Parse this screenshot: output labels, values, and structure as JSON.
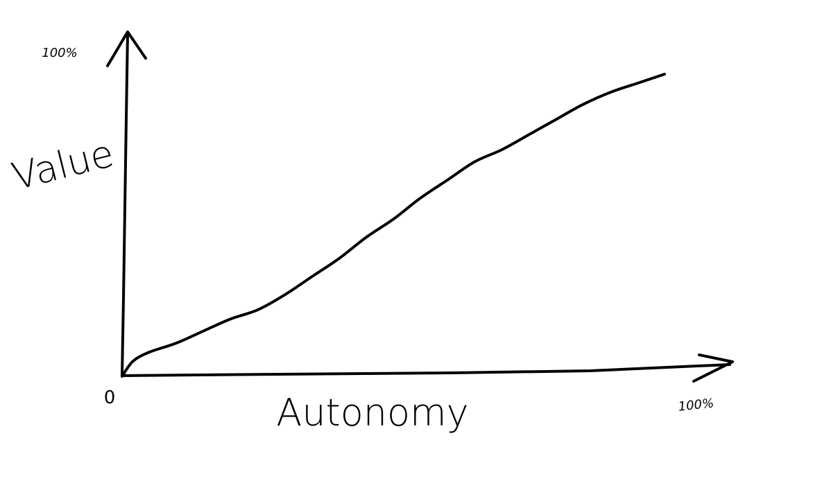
{
  "chart_data": {
    "type": "line",
    "xlabel": "Autonomy",
    "ylabel": "Value",
    "origin_label": "0",
    "x_max_label": "100%",
    "y_max_label": "100%",
    "xlim": [
      0,
      100
    ],
    "ylim": [
      0,
      100
    ],
    "grid": false,
    "series": [
      {
        "x": [
          0,
          2,
          5,
          10,
          15,
          20,
          25,
          30,
          35,
          40,
          45,
          50,
          55,
          60,
          65,
          70,
          75,
          80,
          85,
          90,
          95,
          100
        ],
        "values": [
          0,
          5,
          8,
          11,
          15,
          19,
          22,
          27,
          33,
          39,
          46,
          52,
          59,
          65,
          71,
          75,
          80,
          85,
          90,
          94,
          97,
          100
        ]
      }
    ]
  }
}
